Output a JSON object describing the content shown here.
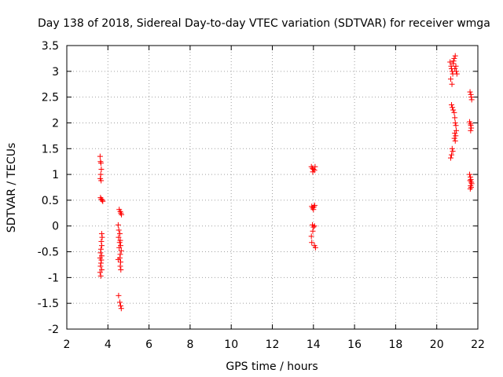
{
  "chart_data": {
    "type": "scatter",
    "title": "Day 138 of 2018, Sidereal Day-to-day VTEC variation (SDTVAR) for receiver wmga",
    "xlabel": "GPS time / hours",
    "ylabel": "SDTVAR / TECUs",
    "xlim": [
      2,
      22
    ],
    "ylim": [
      -2,
      3.5
    ],
    "xticks": [
      "2",
      "4",
      "6",
      "8",
      "10",
      "12",
      "14",
      "16",
      "18",
      "20",
      "22"
    ],
    "yticks": [
      "-2",
      "-1.5",
      "-1",
      "-0.5",
      "0",
      "0.5",
      "1",
      "1.5",
      "2",
      "2.5",
      "3",
      "3.5"
    ],
    "grid": true,
    "marker": "+",
    "color": "#ff0000",
    "series": [
      {
        "name": "SDTVAR",
        "points": [
          [
            3.62,
            1.35
          ],
          [
            3.64,
            1.25
          ],
          [
            3.66,
            1.22
          ],
          [
            3.68,
            1.1
          ],
          [
            3.65,
            1.0
          ],
          [
            3.63,
            0.92
          ],
          [
            3.67,
            0.88
          ],
          [
            3.64,
            0.55
          ],
          [
            3.68,
            0.52
          ],
          [
            3.72,
            0.5
          ],
          [
            3.75,
            0.48
          ],
          [
            3.7,
            -0.15
          ],
          [
            3.72,
            -0.22
          ],
          [
            3.68,
            -0.3
          ],
          [
            3.7,
            -0.38
          ],
          [
            3.66,
            -0.45
          ],
          [
            3.64,
            -0.52
          ],
          [
            3.7,
            -0.58
          ],
          [
            3.62,
            -0.62
          ],
          [
            3.68,
            -0.66
          ],
          [
            3.66,
            -0.72
          ],
          [
            3.64,
            -0.78
          ],
          [
            3.7,
            -0.85
          ],
          [
            3.62,
            -0.9
          ],
          [
            3.65,
            -0.97
          ],
          [
            4.55,
            0.32
          ],
          [
            4.6,
            0.28
          ],
          [
            4.63,
            0.25
          ],
          [
            4.66,
            0.22
          ],
          [
            4.5,
            0.02
          ],
          [
            4.53,
            -0.08
          ],
          [
            4.58,
            -0.15
          ],
          [
            4.52,
            -0.22
          ],
          [
            4.6,
            -0.28
          ],
          [
            4.57,
            -0.32
          ],
          [
            4.62,
            -0.38
          ],
          [
            4.55,
            -0.42
          ],
          [
            4.65,
            -0.48
          ],
          [
            4.6,
            -0.55
          ],
          [
            4.58,
            -0.62
          ],
          [
            4.5,
            -0.65
          ],
          [
            4.62,
            -0.7
          ],
          [
            4.6,
            -0.78
          ],
          [
            4.63,
            -0.85
          ],
          [
            4.52,
            -1.35
          ],
          [
            4.58,
            -1.48
          ],
          [
            4.62,
            -1.55
          ],
          [
            4.65,
            -1.6
          ],
          [
            13.9,
            1.15
          ],
          [
            13.95,
            1.12
          ],
          [
            14.0,
            1.1
          ],
          [
            14.05,
            1.08
          ],
          [
            14.08,
            1.15
          ],
          [
            13.97,
            1.05
          ],
          [
            13.92,
            0.38
          ],
          [
            13.96,
            0.35
          ],
          [
            14.02,
            0.37
          ],
          [
            14.06,
            0.4
          ],
          [
            14.0,
            0.32
          ],
          [
            13.95,
            0.02
          ],
          [
            14.0,
            -0.02
          ],
          [
            14.05,
            0.0
          ],
          [
            13.97,
            -0.1
          ],
          [
            13.9,
            -0.2
          ],
          [
            13.92,
            -0.32
          ],
          [
            14.05,
            -0.38
          ],
          [
            14.1,
            -0.42
          ],
          [
            20.65,
            3.18
          ],
          [
            20.7,
            3.1
          ],
          [
            20.72,
            3.05
          ],
          [
            20.75,
            3.0
          ],
          [
            20.78,
            2.95
          ],
          [
            20.8,
            3.15
          ],
          [
            20.82,
            3.2
          ],
          [
            20.85,
            3.25
          ],
          [
            20.88,
            3.05
          ],
          [
            20.9,
            3.3
          ],
          [
            20.93,
            3.1
          ],
          [
            20.95,
            3.0
          ],
          [
            20.98,
            2.95
          ],
          [
            20.68,
            2.85
          ],
          [
            20.74,
            2.75
          ],
          [
            20.72,
            2.35
          ],
          [
            20.76,
            2.3
          ],
          [
            20.8,
            2.25
          ],
          [
            20.85,
            2.2
          ],
          [
            20.88,
            2.1
          ],
          [
            20.9,
            2.0
          ],
          [
            20.93,
            1.95
          ],
          [
            20.95,
            1.85
          ],
          [
            20.88,
            1.8
          ],
          [
            20.92,
            1.75
          ],
          [
            20.86,
            1.7
          ],
          [
            20.9,
            1.65
          ],
          [
            20.75,
            1.5
          ],
          [
            20.78,
            1.45
          ],
          [
            20.72,
            1.38
          ],
          [
            20.68,
            1.32
          ],
          [
            21.62,
            2.6
          ],
          [
            21.66,
            2.55
          ],
          [
            21.68,
            2.5
          ],
          [
            21.7,
            2.45
          ],
          [
            21.6,
            2.02
          ],
          [
            21.64,
            1.98
          ],
          [
            21.66,
            1.95
          ],
          [
            21.68,
            1.9
          ],
          [
            21.65,
            1.85
          ],
          [
            21.6,
            1.0
          ],
          [
            21.64,
            0.95
          ],
          [
            21.66,
            0.9
          ],
          [
            21.68,
            0.85
          ],
          [
            21.62,
            0.88
          ],
          [
            21.7,
            0.82
          ],
          [
            21.65,
            0.78
          ],
          [
            21.67,
            0.75
          ],
          [
            21.63,
            0.72
          ]
        ]
      }
    ]
  }
}
